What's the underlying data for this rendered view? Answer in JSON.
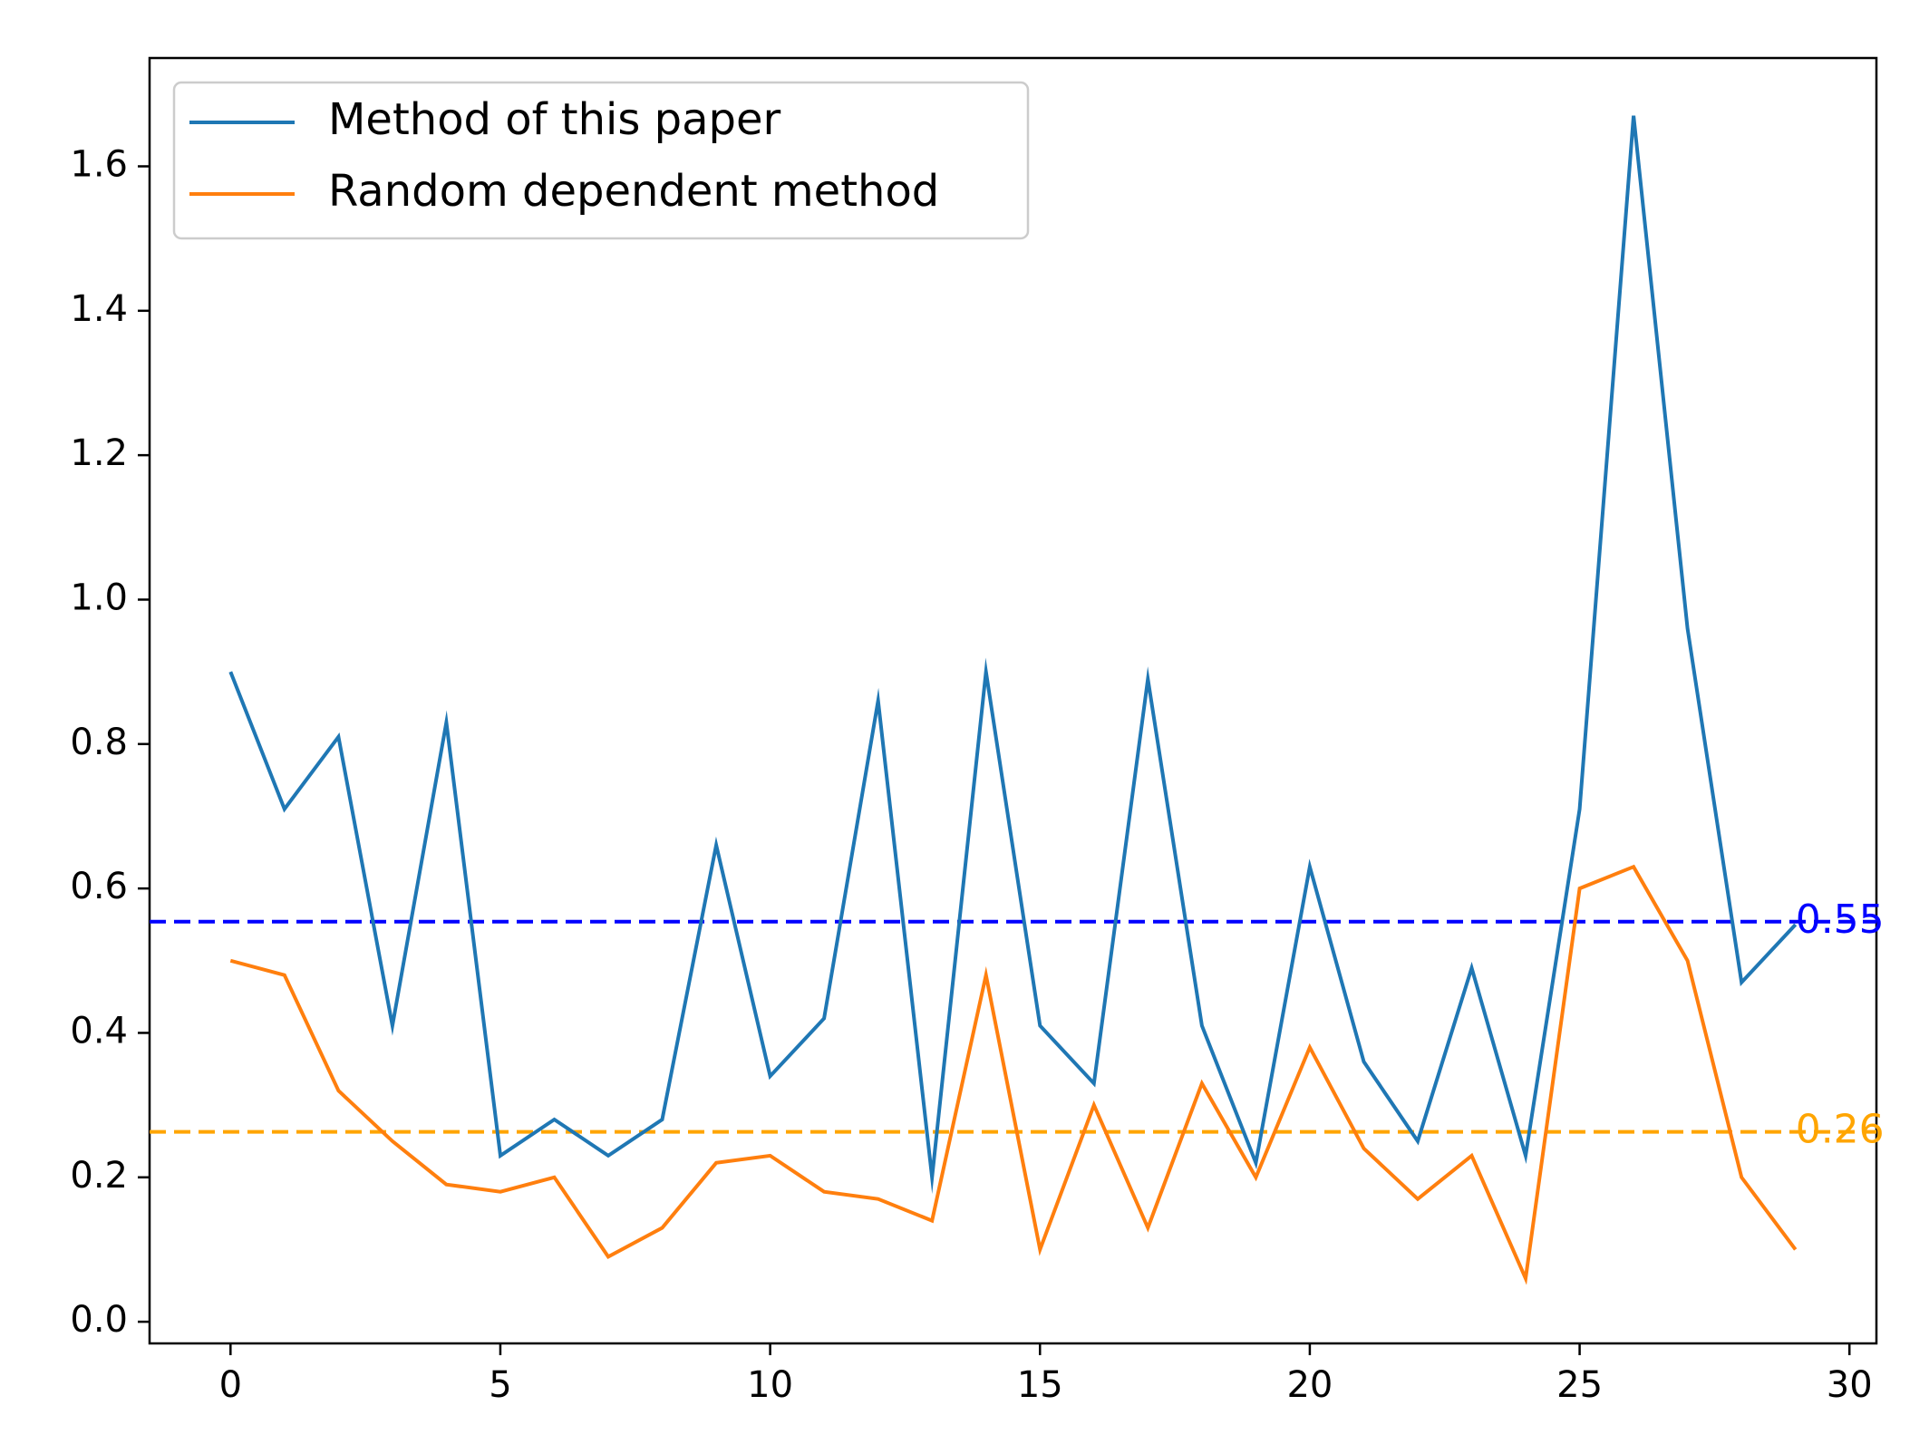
{
  "chart_data": {
    "type": "line",
    "title": "",
    "xlabel": "",
    "ylabel": "",
    "xlim": [
      -1.5,
      30.5
    ],
    "ylim": [
      -0.03,
      1.75
    ],
    "xticks": [
      0,
      5,
      10,
      15,
      20,
      25,
      30
    ],
    "xtick_labels": [
      "0",
      "5",
      "10",
      "15",
      "20",
      "25",
      "30"
    ],
    "yticks": [
      0.0,
      0.2,
      0.4,
      0.6,
      0.8,
      1.0,
      1.2,
      1.4,
      1.6
    ],
    "ytick_labels": [
      "0.0",
      "0.2",
      "0.4",
      "0.6",
      "0.8",
      "1.0",
      "1.2",
      "1.4",
      "1.6"
    ],
    "grid": false,
    "legend": {
      "placement": "upper-left"
    },
    "x": [
      0,
      1,
      2,
      3,
      4,
      5,
      6,
      7,
      8,
      9,
      10,
      11,
      12,
      13,
      14,
      15,
      16,
      17,
      18,
      19,
      20,
      21,
      22,
      23,
      24,
      25,
      26,
      27,
      28,
      29
    ],
    "series": [
      {
        "name": "Method of this paper",
        "color": "#1f77b4",
        "values": [
          0.9,
          0.71,
          0.81,
          0.41,
          0.83,
          0.23,
          0.28,
          0.23,
          0.28,
          0.66,
          0.34,
          0.42,
          0.86,
          0.2,
          0.9,
          0.41,
          0.33,
          0.89,
          0.41,
          0.22,
          0.63,
          0.36,
          0.25,
          0.49,
          0.23,
          0.71,
          1.67,
          0.96,
          0.47,
          0.55
        ]
      },
      {
        "name": "Random dependent method",
        "color": "#ff7f0e",
        "values": [
          0.5,
          0.48,
          0.32,
          0.25,
          0.19,
          0.18,
          0.2,
          0.09,
          0.13,
          0.22,
          0.23,
          0.18,
          0.17,
          0.14,
          0.48,
          0.1,
          0.3,
          0.13,
          0.33,
          0.2,
          0.38,
          0.24,
          0.17,
          0.23,
          0.06,
          0.6,
          0.63,
          0.5,
          0.2,
          0.1
        ]
      }
    ],
    "reference_lines": [
      {
        "value": 0.554,
        "label": "0.55",
        "color": "#0000ff",
        "style": "dashed"
      },
      {
        "value": 0.263,
        "label": "0.26",
        "color": "#ffa500",
        "style": "dashed"
      }
    ]
  }
}
